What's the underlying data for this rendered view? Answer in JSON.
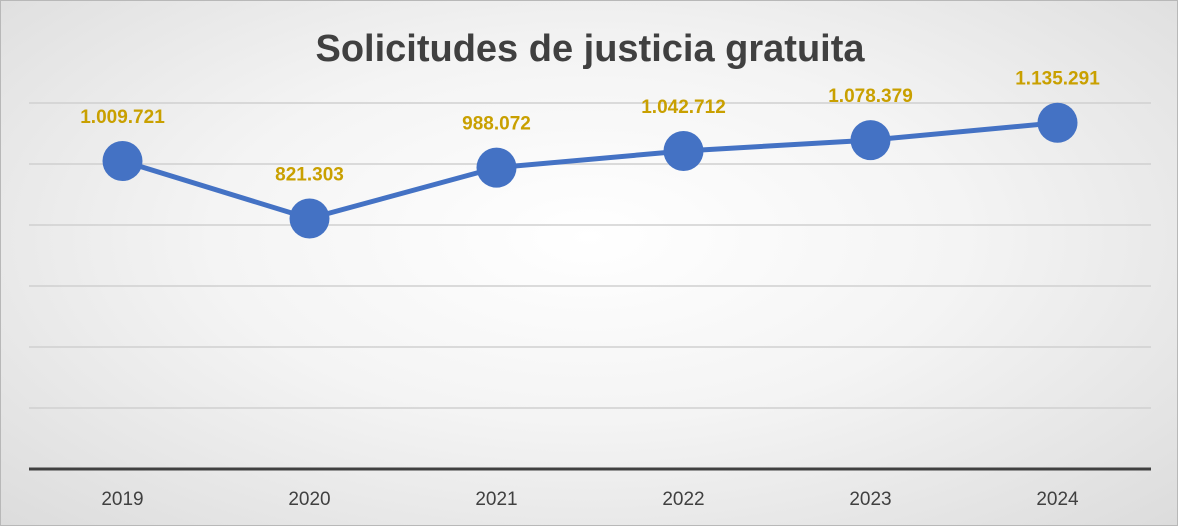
{
  "chart_data": {
    "type": "line",
    "title": "Solicitudes de justicia gratuita",
    "categories": [
      "2019",
      "2020",
      "2021",
      "2022",
      "2023",
      "2024"
    ],
    "series": [
      {
        "values": [
          1009721,
          821303,
          988072,
          1042712,
          1078379,
          1135291
        ],
        "labels": [
          "1.009.721",
          "821.303",
          "988.072",
          "1.042.712",
          "1.078.379",
          "1.135.291"
        ]
      }
    ],
    "ylim": [
      0,
      1200000
    ],
    "y_gridlines": true,
    "y_tick_labels_shown": false,
    "legend": "none"
  },
  "colors": {
    "line": "#4472C4",
    "data_label": "#C9A000",
    "gridline": "#d0d0d0",
    "axis": "#404040",
    "text": "#404040"
  }
}
